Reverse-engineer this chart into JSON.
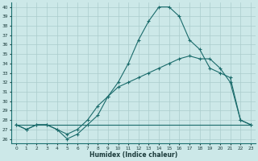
{
  "xlabel": "Humidex (Indice chaleur)",
  "background_color": "#cce8e8",
  "grid_color": "#aacccc",
  "line_color": "#1a6b6b",
  "xlim": [
    -0.5,
    23.5
  ],
  "ylim": [
    25.5,
    40.5
  ],
  "yticks": [
    26,
    27,
    28,
    29,
    30,
    31,
    32,
    33,
    34,
    35,
    36,
    37,
    38,
    39,
    40
  ],
  "xticks": [
    0,
    1,
    2,
    3,
    4,
    5,
    6,
    7,
    8,
    9,
    10,
    11,
    12,
    13,
    14,
    15,
    16,
    17,
    18,
    19,
    20,
    21,
    22,
    23
  ],
  "line1_x": [
    0,
    1,
    2,
    3,
    4,
    5,
    6,
    7,
    8,
    9,
    10,
    11,
    12,
    13,
    14,
    15,
    16,
    17,
    18,
    19,
    20,
    21,
    22,
    23
  ],
  "line1_y": [
    27.5,
    27.0,
    27.5,
    27.5,
    27.0,
    26.0,
    26.5,
    27.5,
    28.5,
    30.5,
    32.0,
    34.0,
    36.5,
    38.5,
    40.0,
    40.0,
    39.0,
    36.5,
    35.5,
    33.5,
    33.0,
    32.5,
    28.0,
    27.5
  ],
  "line2_x": [
    0,
    1,
    2,
    3,
    4,
    5,
    6,
    7,
    8,
    9,
    10,
    11,
    12,
    13,
    14,
    15,
    16,
    17,
    18,
    19,
    20,
    21,
    22,
    23
  ],
  "line2_y": [
    27.5,
    27.0,
    27.5,
    27.5,
    27.0,
    26.5,
    27.0,
    28.0,
    29.5,
    30.5,
    31.5,
    32.0,
    32.5,
    33.0,
    33.5,
    34.0,
    34.5,
    34.8,
    34.5,
    34.5,
    33.5,
    32.0,
    28.0,
    27.5
  ],
  "line3_x": [
    0,
    3,
    23
  ],
  "line3_y": [
    27.5,
    27.5,
    27.5
  ]
}
